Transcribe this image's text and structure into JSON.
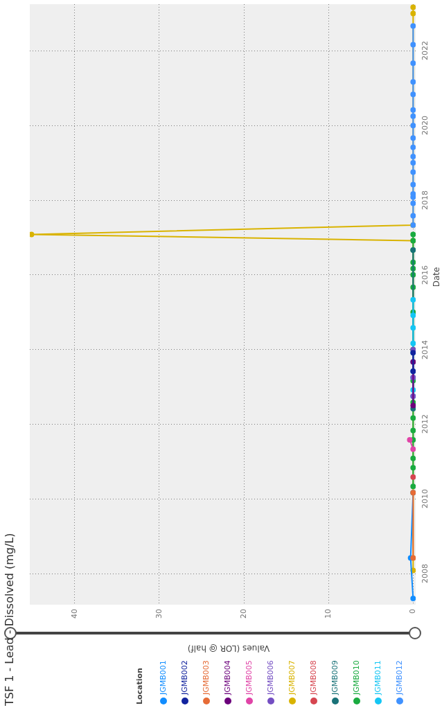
{
  "chart_data": {
    "type": "line",
    "orientation": "horizontal",
    "title": "TSF 1 - Lead - Dissolved (mg/L)",
    "xlabel": "Values (LOR @ half)",
    "ylabel": "Date",
    "legend_title": "Location",
    "legend": "bottom",
    "grid": true,
    "marker": "circle",
    "line_style": "solid",
    "ylim": [
      "2007-03",
      "2023-04"
    ],
    "yticks": [
      "2008",
      "2010",
      "2012",
      "2014",
      "2016",
      "2018",
      "2020",
      "2022"
    ],
    "xlim": [
      45.3,
      -0.3
    ],
    "xticks": [
      0,
      10,
      20,
      30,
      40
    ],
    "series": [
      {
        "name": "JGMB001",
        "color": "#118dff",
        "x": [
          "2007-05",
          "2008-06",
          "2010-03"
        ],
        "values": [
          0,
          0.3,
          0
        ]
      },
      {
        "name": "JGMB002",
        "color": "#12239e",
        "x": [
          "2013-06",
          "2013-12"
        ],
        "values": [
          0,
          0
        ]
      },
      {
        "name": "JGMB003",
        "color": "#e66c37",
        "x": [
          "2008-06",
          "2010-03"
        ],
        "values": [
          0,
          0
        ]
      },
      {
        "name": "JGMB004",
        "color": "#6b007b",
        "x": [
          "2012-07",
          "2013-09"
        ],
        "values": [
          0,
          0
        ]
      },
      {
        "name": "JGMB005",
        "color": "#e044a7",
        "x": [
          "2011-05",
          "2011-08"
        ],
        "values": [
          0,
          0.4
        ]
      },
      {
        "name": "JGMB006",
        "color": "#744ec2",
        "x": [
          "2012-10",
          "2013-04",
          "2014-01"
        ],
        "values": [
          0,
          0,
          0
        ]
      },
      {
        "name": "JGMB007",
        "color": "#d9b300",
        "x": [
          "2008-02",
          "2008-06",
          "2010-03",
          "2016-12",
          "2017-02",
          "2017-05",
          "2023-01",
          "2023-03"
        ],
        "values": [
          0,
          0,
          0,
          0,
          45.1,
          0,
          0,
          0
        ]
      },
      {
        "name": "JGMB008",
        "color": "#d64550",
        "x": [
          "2010-08"
        ],
        "values": [
          0
        ]
      },
      {
        "name": "JGMB009",
        "color": "#197278",
        "x": [
          "2012-06",
          "2016-09"
        ],
        "values": [
          0,
          0
        ]
      },
      {
        "name": "JGMB010",
        "color": "#1aab40",
        "x": [
          "2010-05",
          "2010-11",
          "2011-02",
          "2011-08",
          "2011-11",
          "2012-03",
          "2012-08",
          "2013-03",
          "2014-01",
          "2015-01",
          "2015-09",
          "2016-01",
          "2016-03",
          "2016-05",
          "2016-09",
          "2016-12",
          "2017-02"
        ],
        "values": [
          0,
          0,
          0,
          0,
          0,
          0,
          0,
          0,
          0,
          0,
          0,
          0,
          0,
          0,
          0,
          0,
          0
        ]
      },
      {
        "name": "JGMB011",
        "color": "#15c6f4",
        "x": [
          "2012-10",
          "2012-12",
          "2013-04",
          "2013-06",
          "2013-09",
          "2013-12",
          "2014-03",
          "2014-08",
          "2014-12",
          "2015-05"
        ],
        "values": [
          0,
          0,
          0,
          0,
          0,
          0,
          0,
          0,
          0,
          0
        ]
      },
      {
        "name": "JGMB012",
        "color": "#4092ff",
        "x": [
          "2017-05",
          "2017-08",
          "2017-12",
          "2018-02",
          "2018-03",
          "2018-06",
          "2018-10",
          "2019-01",
          "2019-03",
          "2019-06",
          "2019-09",
          "2020-01",
          "2020-04",
          "2020-06",
          "2020-11",
          "2021-03",
          "2021-09",
          "2022-03",
          "2022-09"
        ],
        "values": [
          0,
          0,
          0,
          0,
          0,
          0,
          0,
          0,
          0,
          0,
          0,
          0,
          0,
          0,
          0,
          0,
          0,
          0,
          0
        ]
      }
    ]
  }
}
